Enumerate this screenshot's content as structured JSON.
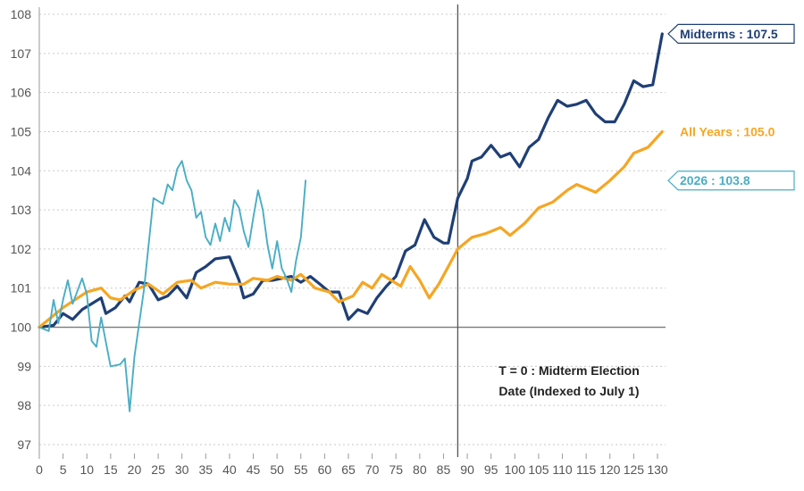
{
  "chart_data": {
    "type": "line",
    "title": "",
    "xlabel": "",
    "ylabel": "",
    "xlim": [
      0,
      130
    ],
    "ylim": [
      97,
      108
    ],
    "x_ticks": [
      0,
      5,
      10,
      15,
      20,
      25,
      30,
      35,
      40,
      45,
      50,
      55,
      60,
      65,
      70,
      75,
      80,
      85,
      90,
      95,
      100,
      105,
      110,
      115,
      120,
      125,
      130
    ],
    "y_ticks": [
      97,
      98,
      99,
      100,
      101,
      102,
      103,
      104,
      105,
      106,
      107,
      108
    ],
    "grid": true,
    "baseline": 100,
    "vline_x": 88,
    "annotation": {
      "line1": "T = 0 : Midterm Election",
      "line2": "Date (Indexed to July 1)"
    },
    "series": [
      {
        "color": "#1f3f75",
        "end_label": "Midterms : 107.5",
        "points": [
          [
            0,
            100
          ],
          [
            3,
            100.05
          ],
          [
            5,
            100.35
          ],
          [
            7,
            100.2
          ],
          [
            9,
            100.45
          ],
          [
            11,
            100.6
          ],
          [
            13,
            100.75
          ],
          [
            14,
            100.35
          ],
          [
            16,
            100.5
          ],
          [
            18,
            100.8
          ],
          [
            19,
            100.65
          ],
          [
            21,
            101.15
          ],
          [
            23,
            101.1
          ],
          [
            25,
            100.7
          ],
          [
            27,
            100.8
          ],
          [
            29,
            101.05
          ],
          [
            31,
            100.75
          ],
          [
            33,
            101.4
          ],
          [
            35,
            101.55
          ],
          [
            37,
            101.75
          ],
          [
            40,
            101.8
          ],
          [
            42,
            101.2
          ],
          [
            43,
            100.75
          ],
          [
            45,
            100.85
          ],
          [
            47,
            101.2
          ],
          [
            49,
            101.2
          ],
          [
            51,
            101.25
          ],
          [
            53,
            101.3
          ],
          [
            55,
            101.15
          ],
          [
            57,
            101.3
          ],
          [
            59,
            101.1
          ],
          [
            61,
            100.9
          ],
          [
            63,
            100.9
          ],
          [
            65,
            100.2
          ],
          [
            67,
            100.45
          ],
          [
            69,
            100.35
          ],
          [
            71,
            100.75
          ],
          [
            73,
            101.05
          ],
          [
            75,
            101.3
          ],
          [
            77,
            101.95
          ],
          [
            79,
            102.1
          ],
          [
            81,
            102.75
          ],
          [
            83,
            102.3
          ],
          [
            85,
            102.15
          ],
          [
            86,
            102.15
          ],
          [
            88,
            103.3
          ],
          [
            90,
            103.8
          ],
          [
            91,
            104.25
          ],
          [
            93,
            104.35
          ],
          [
            95,
            104.65
          ],
          [
            97,
            104.35
          ],
          [
            99,
            104.45
          ],
          [
            101,
            104.1
          ],
          [
            103,
            104.6
          ],
          [
            105,
            104.8
          ],
          [
            107,
            105.35
          ],
          [
            109,
            105.8
          ],
          [
            111,
            105.65
          ],
          [
            113,
            105.7
          ],
          [
            115,
            105.8
          ],
          [
            117,
            105.45
          ],
          [
            119,
            105.25
          ],
          [
            121,
            105.25
          ],
          [
            123,
            105.7
          ],
          [
            125,
            106.3
          ],
          [
            127,
            106.15
          ],
          [
            129,
            106.2
          ],
          [
            131,
            107.5
          ]
        ]
      },
      {
        "color": "#f5a623",
        "end_label": "All Years : 105.0",
        "points": [
          [
            0,
            100
          ],
          [
            5,
            100.5
          ],
          [
            10,
            100.9
          ],
          [
            13,
            101
          ],
          [
            15,
            100.75
          ],
          [
            17,
            100.7
          ],
          [
            20,
            100.95
          ],
          [
            23,
            101.1
          ],
          [
            26,
            100.85
          ],
          [
            29,
            101.15
          ],
          [
            32,
            101.2
          ],
          [
            34,
            101
          ],
          [
            37,
            101.15
          ],
          [
            40,
            101.1
          ],
          [
            43,
            101.1
          ],
          [
            45,
            101.25
          ],
          [
            48,
            101.2
          ],
          [
            50,
            101.3
          ],
          [
            53,
            101.2
          ],
          [
            55,
            101.35
          ],
          [
            58,
            101
          ],
          [
            61,
            100.9
          ],
          [
            63,
            100.65
          ],
          [
            66,
            100.8
          ],
          [
            68,
            101.15
          ],
          [
            70,
            101
          ],
          [
            72,
            101.35
          ],
          [
            74,
            101.2
          ],
          [
            76,
            101.05
          ],
          [
            78,
            101.55
          ],
          [
            80,
            101.2
          ],
          [
            82,
            100.75
          ],
          [
            84,
            101.1
          ],
          [
            86,
            101.55
          ],
          [
            88,
            102
          ],
          [
            91,
            102.3
          ],
          [
            94,
            102.4
          ],
          [
            97,
            102.55
          ],
          [
            99,
            102.35
          ],
          [
            102,
            102.65
          ],
          [
            105,
            103.05
          ],
          [
            108,
            103.2
          ],
          [
            111,
            103.5
          ],
          [
            113,
            103.65
          ],
          [
            115,
            103.55
          ],
          [
            117,
            103.45
          ],
          [
            120,
            103.75
          ],
          [
            123,
            104.1
          ],
          [
            125,
            104.45
          ],
          [
            128,
            104.6
          ],
          [
            131,
            105
          ]
        ]
      },
      {
        "color": "#4aaec4",
        "end_label": "2026 : 103.8",
        "points": [
          [
            0,
            100
          ],
          [
            2,
            99.9
          ],
          [
            3,
            100.7
          ],
          [
            4,
            100.1
          ],
          [
            5,
            100.7
          ],
          [
            6,
            101.2
          ],
          [
            7,
            100.6
          ],
          [
            9,
            101.25
          ],
          [
            10,
            100.85
          ],
          [
            11,
            99.65
          ],
          [
            12,
            99.5
          ],
          [
            13,
            100.25
          ],
          [
            15,
            99
          ],
          [
            17,
            99.05
          ],
          [
            18,
            99.2
          ],
          [
            19,
            97.85
          ],
          [
            20,
            99.25
          ],
          [
            22,
            100.95
          ],
          [
            24,
            103.3
          ],
          [
            26,
            103.15
          ],
          [
            27,
            103.65
          ],
          [
            28,
            103.5
          ],
          [
            29,
            104.05
          ],
          [
            30,
            104.25
          ],
          [
            31,
            103.75
          ],
          [
            32,
            103.5
          ],
          [
            33,
            102.8
          ],
          [
            34,
            102.95
          ],
          [
            35,
            102.3
          ],
          [
            36,
            102.1
          ],
          [
            37,
            102.65
          ],
          [
            38,
            102.2
          ],
          [
            39,
            102.8
          ],
          [
            40,
            102.45
          ],
          [
            41,
            103.25
          ],
          [
            42,
            103.05
          ],
          [
            43,
            102.45
          ],
          [
            44,
            102.05
          ],
          [
            45,
            102.8
          ],
          [
            46,
            103.5
          ],
          [
            47,
            103
          ],
          [
            48,
            102.1
          ],
          [
            49,
            101.5
          ],
          [
            50,
            102.2
          ],
          [
            51,
            101.5
          ],
          [
            52,
            101.25
          ],
          [
            53,
            100.9
          ],
          [
            54,
            101.7
          ],
          [
            55,
            102.3
          ],
          [
            56,
            103.75
          ]
        ]
      }
    ]
  }
}
